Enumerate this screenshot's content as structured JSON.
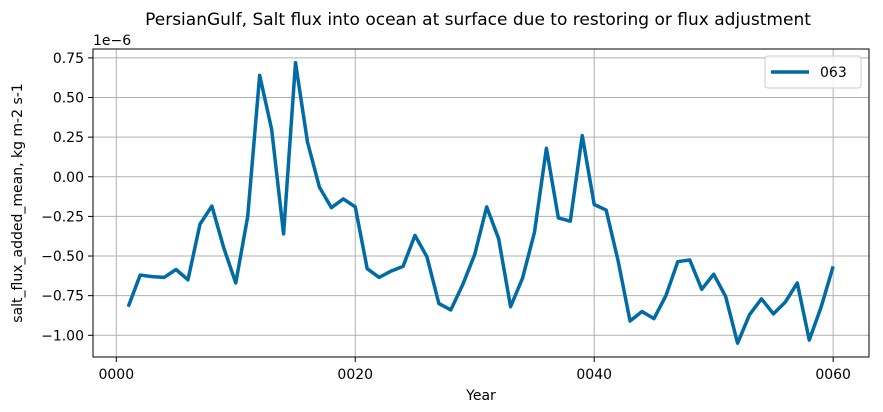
{
  "chart_data": {
    "type": "line",
    "title": "PersianGulf, Salt flux into ocean at surface due to restoring or flux adjustment",
    "xlabel": "Year",
    "ylabel": "salt_flux_added_mean, kg m-2 s-1",
    "y_offset_label": "1e−6",
    "xlim": [
      -1.95,
      63.0
    ],
    "ylim": [
      -1.137,
      0.806
    ],
    "x_ticks": [
      0,
      20,
      40,
      60
    ],
    "x_tick_labels": [
      "0000",
      "0020",
      "0040",
      "0060"
    ],
    "y_ticks": [
      -1.0,
      -0.75,
      -0.5,
      -0.25,
      0.0,
      0.25,
      0.5,
      0.75
    ],
    "y_tick_labels": [
      "−1.00",
      "−0.75",
      "−0.50",
      "−0.25",
      "0.00",
      "0.25",
      "0.50",
      "0.75"
    ],
    "grid": true,
    "legend_position": "top-right",
    "series": [
      {
        "name": "063",
        "color": "#006ba4",
        "x": [
          1,
          2,
          3,
          4,
          5,
          6,
          7,
          8,
          9,
          10,
          11,
          12,
          13,
          14,
          15,
          16,
          17,
          18,
          19,
          20,
          21,
          22,
          23,
          24,
          25,
          26,
          27,
          28,
          29,
          30,
          31,
          32,
          33,
          34,
          35,
          36,
          37,
          38,
          39,
          40,
          41,
          42,
          43,
          44,
          45,
          46,
          47,
          48,
          49,
          50,
          51,
          52,
          53,
          54,
          55,
          56,
          57,
          58,
          59,
          60
        ],
        "values": [
          -0.82,
          -0.62,
          -0.63,
          -0.635,
          -0.585,
          -0.65,
          -0.3,
          -0.185,
          -0.45,
          -0.67,
          -0.25,
          0.64,
          0.3,
          -0.36,
          0.72,
          0.22,
          -0.065,
          -0.195,
          -0.14,
          -0.19,
          -0.58,
          -0.635,
          -0.595,
          -0.565,
          -0.37,
          -0.505,
          -0.8,
          -0.84,
          -0.68,
          -0.49,
          -0.19,
          -0.39,
          -0.82,
          -0.64,
          -0.35,
          0.18,
          -0.26,
          -0.28,
          0.26,
          -0.175,
          -0.21,
          -0.53,
          -0.91,
          -0.85,
          -0.895,
          -0.75,
          -0.535,
          -0.525,
          -0.71,
          -0.615,
          -0.755,
          -1.05,
          -0.87,
          -0.77,
          -0.865,
          -0.79,
          -0.67,
          -1.03,
          -0.82,
          -0.565
        ]
      }
    ]
  }
}
